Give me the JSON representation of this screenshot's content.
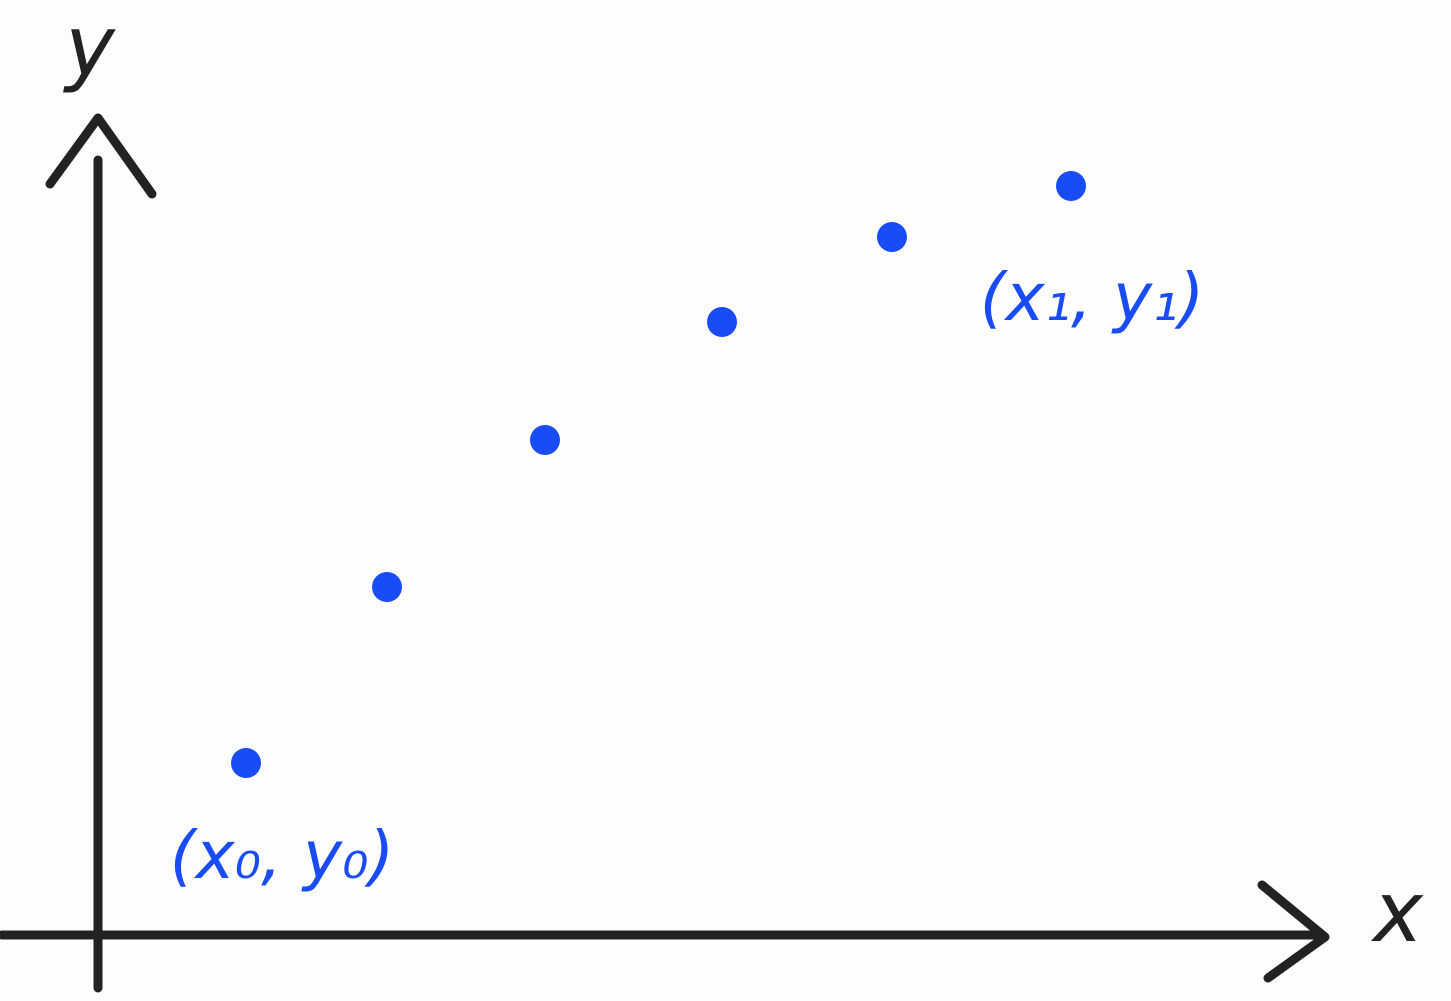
{
  "axes": {
    "x_label": "x",
    "y_label": "y"
  },
  "labels": [
    "(x₀, y₀)",
    "(x₁, y₁)"
  ]
}
